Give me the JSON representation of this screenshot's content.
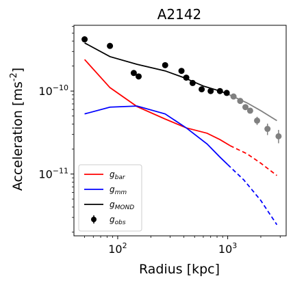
{
  "chart_data": {
    "type": "line",
    "title": "A2142",
    "xlabel": "Radius [kpc]",
    "ylabel": "Acceleration [ms^-2]",
    "xscale": "log",
    "yscale": "log",
    "xlim": [
      40,
      3400
    ],
    "ylim": [
      1.8e-12,
      6.2e-10
    ],
    "xticks": [
      {
        "value": 100,
        "base": "10",
        "exp": "2"
      },
      {
        "value": 1000,
        "base": "10",
        "exp": "3"
      }
    ],
    "yticks": [
      {
        "value": 1e-11,
        "base": "10",
        "exp": "−11"
      },
      {
        "value": 1e-10,
        "base": "10",
        "exp": "−10"
      }
    ],
    "legend_position": "lower-left",
    "series": [
      {
        "key": "gbar",
        "name": "g",
        "sub": "bar",
        "color": "#ff0000",
        "style": "line",
        "solid": [
          [
            50,
            2.4e-10
          ],
          [
            85,
            1.1e-10
          ],
          [
            150,
            6.5e-11
          ],
          [
            270,
            4.6e-11
          ],
          [
            420,
            3.6e-11
          ],
          [
            650,
            3.1e-11
          ],
          [
            850,
            2.6e-11
          ],
          [
            1050,
            2.2e-11
          ]
        ],
        "dashed": [
          [
            1050,
            2.2e-11
          ],
          [
            1500,
            1.75e-11
          ],
          [
            2000,
            1.35e-11
          ],
          [
            2800,
            9.6e-12
          ]
        ]
      },
      {
        "key": "gmm",
        "name": "g",
        "sub": "mm",
        "color": "#0000ff",
        "style": "line",
        "solid": [
          [
            50,
            5.3e-11
          ],
          [
            85,
            6.4e-11
          ],
          [
            150,
            6.6e-11
          ],
          [
            270,
            5.3e-11
          ],
          [
            420,
            3.6e-11
          ],
          [
            650,
            2.3e-11
          ],
          [
            850,
            1.6e-11
          ],
          [
            1000,
            1.3e-11
          ]
        ],
        "dashed": [
          [
            1000,
            1.3e-11
          ],
          [
            1400,
            8.5e-12
          ],
          [
            2000,
            4.8e-12
          ],
          [
            2800,
            2.45e-12
          ]
        ]
      },
      {
        "key": "gmond",
        "name": "g",
        "sub": "MOND",
        "color": "#000000",
        "style": "line",
        "solid": [
          [
            50,
            3.8e-10
          ],
          [
            85,
            2.6e-10
          ],
          [
            150,
            2.1e-10
          ],
          [
            270,
            1.75e-10
          ],
          [
            400,
            1.45e-10
          ],
          [
            600,
            1.15e-10
          ],
          [
            850,
            1e-10
          ],
          [
            1000,
            9.2e-11
          ]
        ],
        "tail": [
          [
            1000,
            9.2e-11
          ],
          [
            1500,
            7.2e-11
          ],
          [
            2000,
            5.8e-11
          ],
          [
            2800,
            4.4e-11
          ]
        ],
        "tail_color": "#808080"
      },
      {
        "key": "gobs",
        "name": "g",
        "sub": "obs",
        "color": "#000000",
        "style": "errorbar",
        "points": [
          {
            "x": 50,
            "y": 4.2e-10
          },
          {
            "x": 85,
            "y": 3.5e-10
          },
          {
            "x": 140,
            "y": 1.65e-10
          },
          {
            "x": 155,
            "y": 1.5e-10
          },
          {
            "x": 270,
            "y": 2.05e-10
          },
          {
            "x": 380,
            "y": 1.75e-10
          },
          {
            "x": 420,
            "y": 1.45e-10
          },
          {
            "x": 480,
            "y": 1.25e-10
          },
          {
            "x": 580,
            "y": 1.05e-10
          },
          {
            "x": 700,
            "y": 1e-10
          },
          {
            "x": 850,
            "y": 1e-10
          },
          {
            "x": 980,
            "y": 9.5e-11
          },
          {
            "x": 1130,
            "y": 8.6e-11,
            "color": "#808080"
          },
          {
            "x": 1300,
            "y": 7.6e-11,
            "color": "#808080"
          },
          {
            "x": 1450,
            "y": 6.4e-11,
            "color": "#808080"
          },
          {
            "x": 1600,
            "y": 5.8e-11,
            "color": "#808080"
          },
          {
            "x": 1850,
            "y": 4.4e-11,
            "color": "#808080",
            "ylo": 3.9e-11,
            "yhi": 4.9e-11
          },
          {
            "x": 2300,
            "y": 3.5e-11,
            "color": "#808080",
            "ylo": 2.95e-11,
            "yhi": 4.05e-11
          },
          {
            "x": 2900,
            "y": 2.85e-11,
            "color": "#808080",
            "ylo": 2.35e-11,
            "yhi": 3.4e-11
          }
        ]
      }
    ]
  }
}
